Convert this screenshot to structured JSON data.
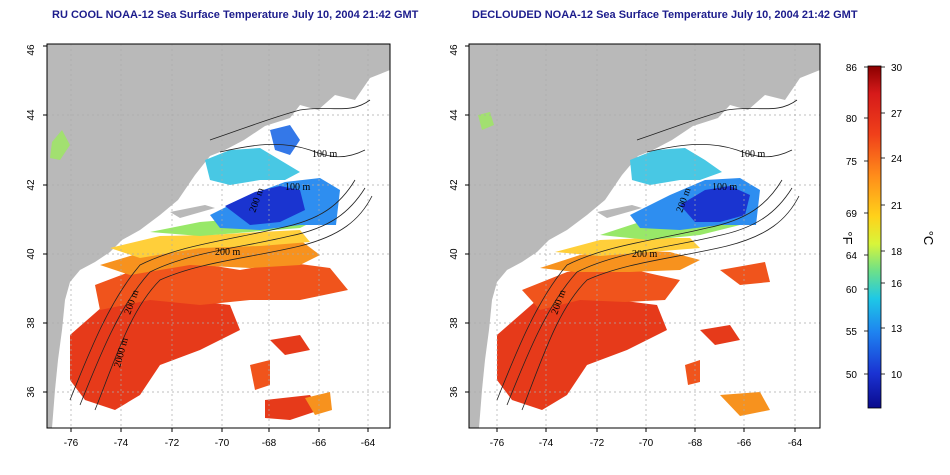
{
  "panels": [
    {
      "id": "left",
      "title": "RU COOL NOAA-12 Sea Surface Temperature July 10, 2004 21:42 GMT"
    },
    {
      "id": "right",
      "title": "DECLOUDED NOAA-12 Sea Surface Temperature July 10, 2004 21:42 GMT"
    }
  ],
  "axes": {
    "lon_ticks": [
      "-76",
      "-74",
      "-72",
      "-70",
      "-68",
      "-66",
      "-64"
    ],
    "lat_ticks": [
      "36",
      "38",
      "40",
      "42",
      "44",
      "46"
    ]
  },
  "contour_labels": {
    "left": [
      "100 m",
      "100 m",
      "200 m",
      "200 m",
      "200 m",
      "2000 m"
    ],
    "right": [
      "100 m",
      "100 m",
      "200 m",
      "200 m",
      "200 m"
    ]
  },
  "colorbar": {
    "fahrenheit_ticks": [
      "86",
      "80",
      "75",
      "69",
      "64",
      "60",
      "55",
      "50"
    ],
    "celsius_ticks": [
      "30",
      "27",
      "24",
      "21",
      "18",
      "16",
      "13",
      "10"
    ],
    "fahrenheit_unit": "°F",
    "celsius_unit": "°C",
    "colors": [
      "#8b0000",
      "#d61a1a",
      "#f0401a",
      "#ff8c1a",
      "#ffd21a",
      "#d8f53a",
      "#6ce08a",
      "#1ec8e6",
      "#1e82f0",
      "#1a32d2",
      "#0a0a8c"
    ]
  },
  "colors": {
    "land": "#b9b9b9",
    "title": "#1c1c8c"
  }
}
